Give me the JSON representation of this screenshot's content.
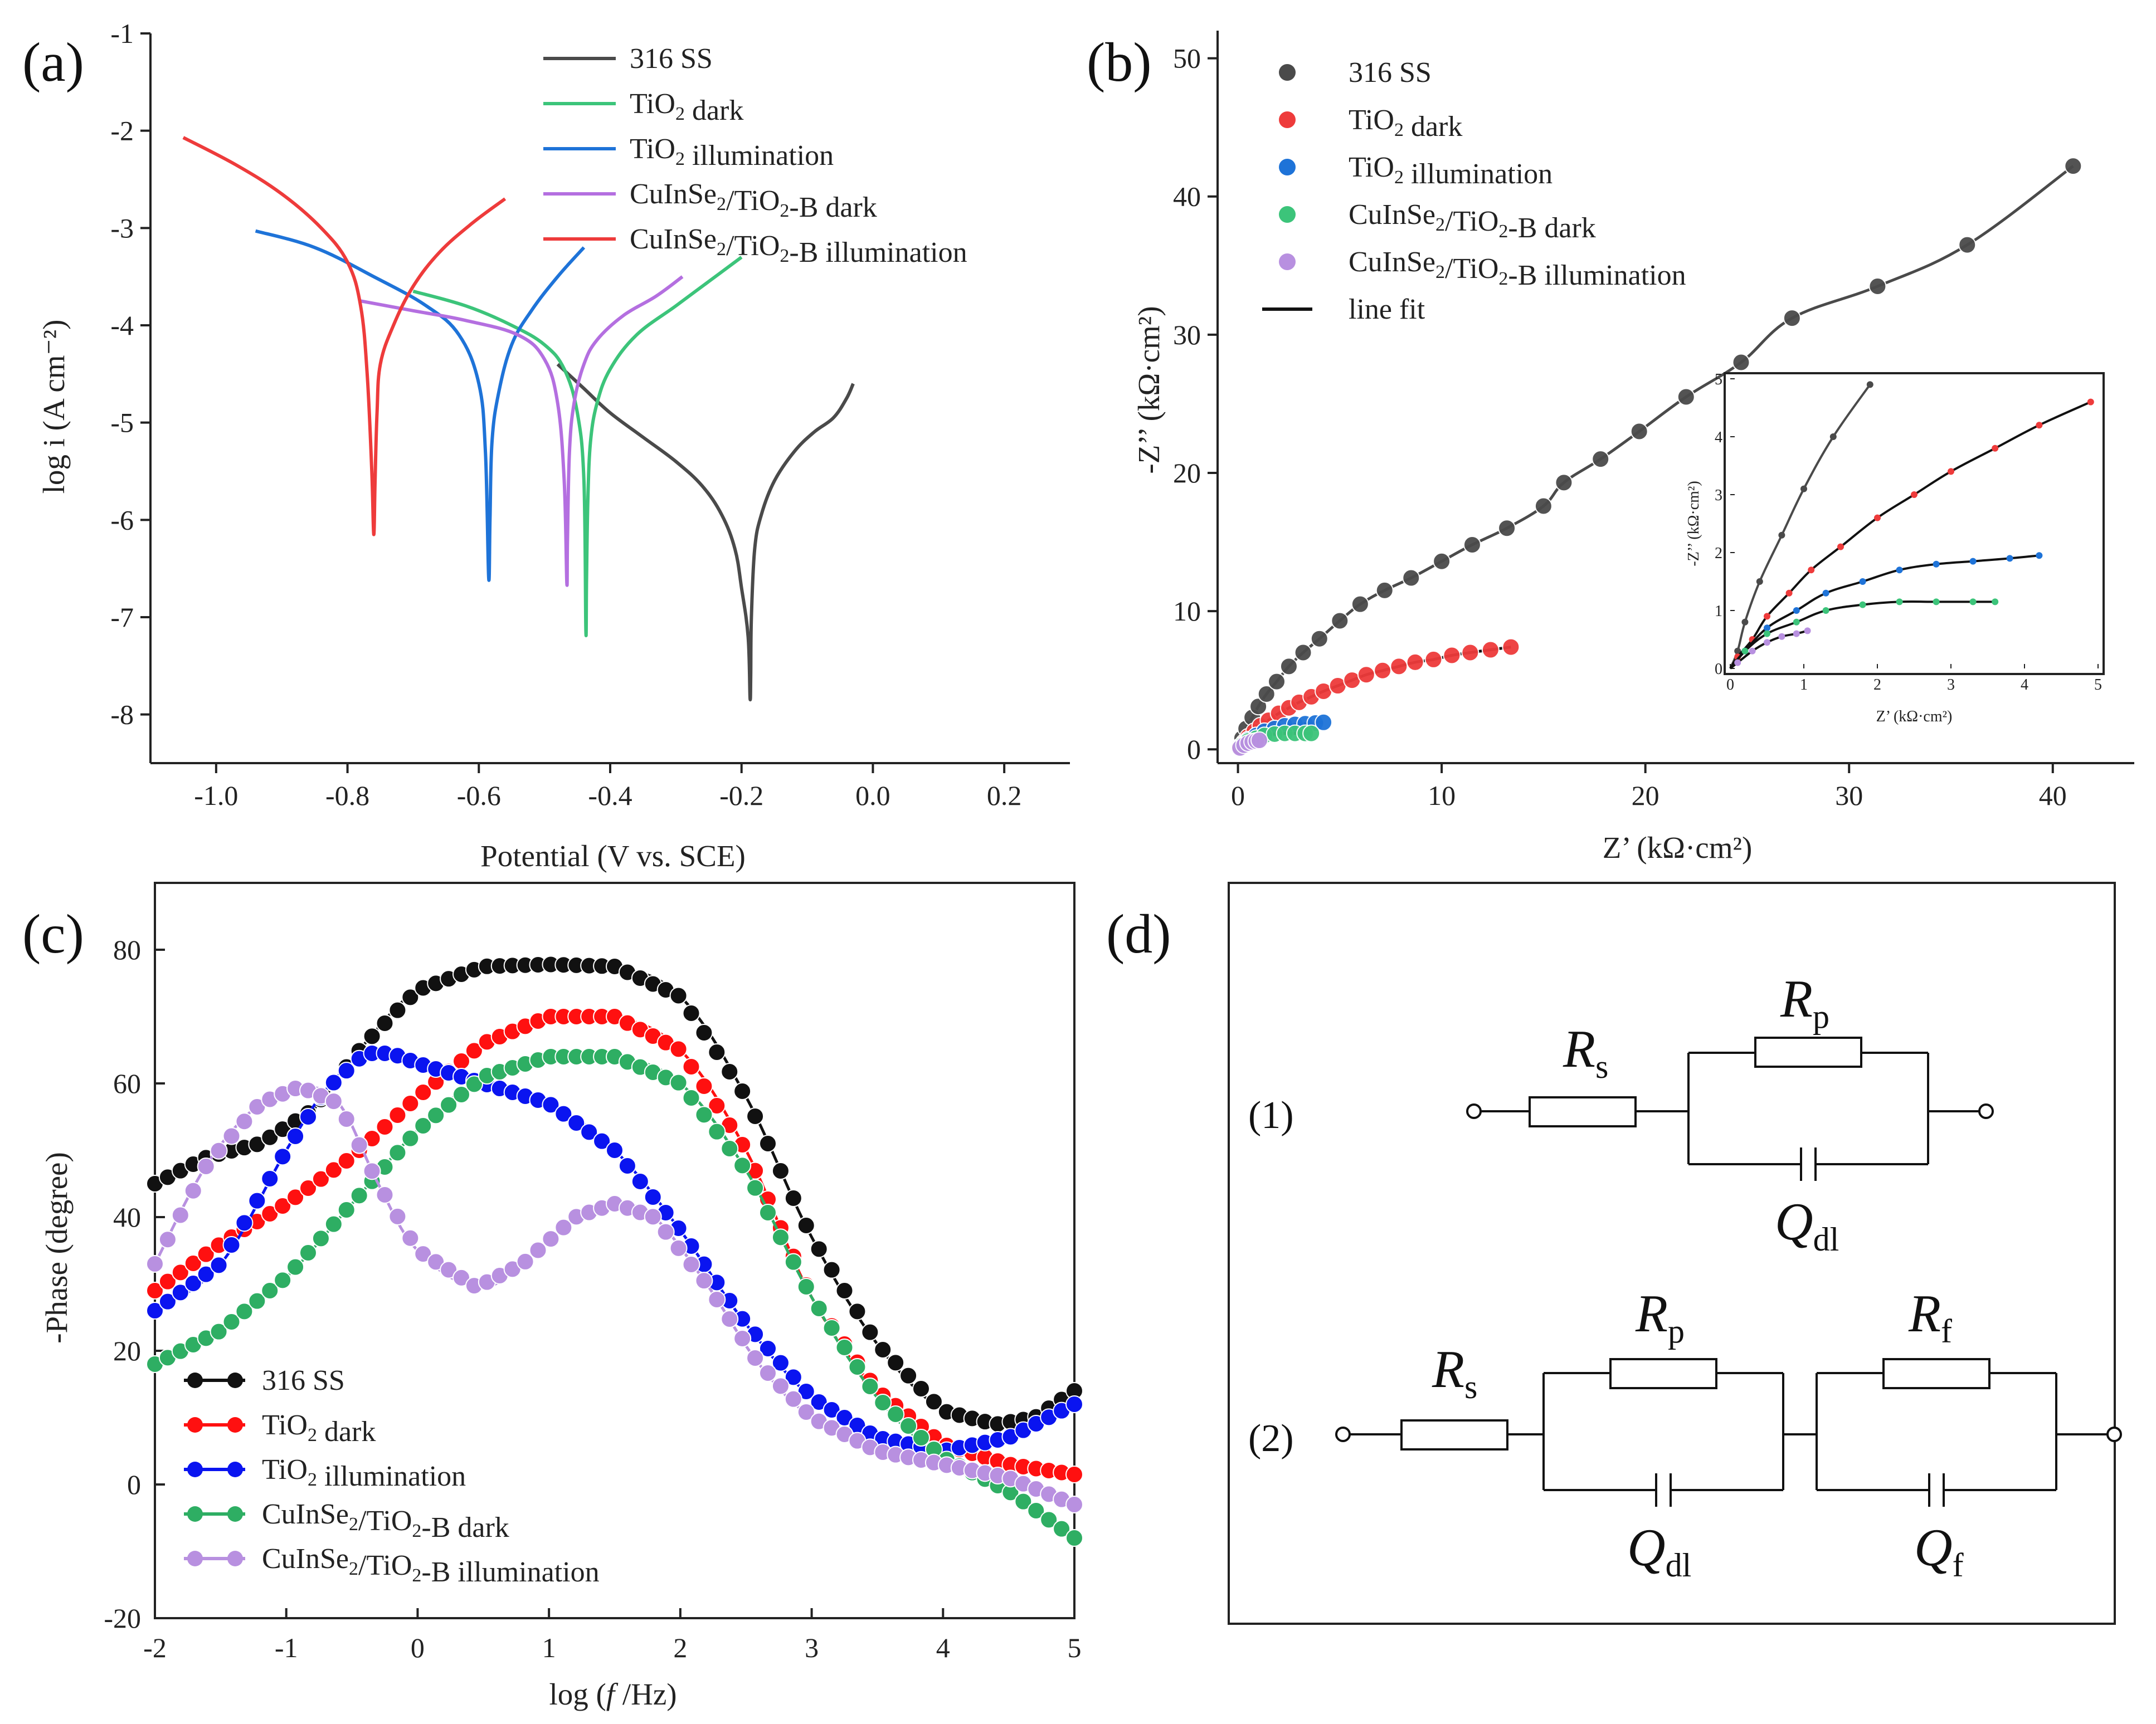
{
  "colors": {
    "ss316": "#4a4a4a",
    "tio2_dark": "#3cc47a",
    "tio2_illum": "#1e73d8",
    "cis_dark": "#b46fe0",
    "cis_illum": "#ee3b3b",
    "red": "#ff1010",
    "blue": "#0a14f0",
    "green": "#2eae63",
    "purple": "#b890e0",
    "black": "#111111"
  },
  "chart_data": [
    {
      "id": "a",
      "panel_label": "(a)",
      "type": "line",
      "title": "",
      "xlabel": "Potential (V vs. SCE)",
      "ylabel": "log i (A cm⁻²)",
      "xlim": [
        -1.1,
        0.3
      ],
      "ylim": [
        -8.5,
        -1
      ],
      "x_ticks": [
        "-1.0",
        "-0.8",
        "-0.6",
        "-0.4",
        "-0.2",
        "0.0",
        "0.2"
      ],
      "y_ticks": [
        "-1",
        "-2",
        "-3",
        "-4",
        "-5",
        "-6",
        "-7",
        "-8"
      ],
      "legend": [
        "316 SS",
        "TiO₂ dark",
        "TiO₂ illumination",
        "CuInSe₂/TiO₂-B dark",
        "CuInSe₂/TiO₂-B illumination"
      ],
      "legend_position": "top-right",
      "series": [
        {
          "name": "316 SS",
          "color_key": "ss316",
          "x": [
            -0.48,
            -0.44,
            -0.4,
            -0.35,
            -0.3,
            -0.26,
            -0.23,
            -0.21,
            -0.2,
            -0.19,
            -0.187,
            -0.186,
            -0.185,
            -0.18,
            -0.17,
            -0.15,
            -0.12,
            -0.09,
            -0.06,
            -0.04,
            -0.03
          ],
          "y": [
            -4.4,
            -4.65,
            -4.9,
            -5.15,
            -5.4,
            -5.65,
            -5.95,
            -6.3,
            -6.7,
            -7.2,
            -7.83,
            -7.6,
            -7.0,
            -6.3,
            -5.95,
            -5.6,
            -5.3,
            -5.1,
            -4.95,
            -4.75,
            -4.6
          ]
        },
        {
          "name": "TiO₂ dark",
          "color_key": "tio2_dark",
          "x": [
            -0.7,
            -0.62,
            -0.55,
            -0.5,
            -0.47,
            -0.45,
            -0.44,
            -0.437,
            -0.436,
            -0.434,
            -0.43,
            -0.42,
            -0.4,
            -0.36,
            -0.3,
            -0.25,
            -0.2
          ],
          "y": [
            -3.65,
            -3.8,
            -4.0,
            -4.2,
            -4.45,
            -4.9,
            -5.6,
            -7.15,
            -6.6,
            -5.8,
            -5.2,
            -4.8,
            -4.45,
            -4.1,
            -3.8,
            -3.55,
            -3.3
          ]
        },
        {
          "name": "TiO₂ illumination",
          "color_key": "tio2_illum",
          "x": [
            -0.94,
            -0.85,
            -0.76,
            -0.68,
            -0.63,
            -0.6,
            -0.59,
            -0.585,
            -0.583,
            -0.58,
            -0.57,
            -0.55,
            -0.52,
            -0.48,
            -0.44
          ],
          "y": [
            -3.03,
            -3.2,
            -3.5,
            -3.8,
            -4.1,
            -4.6,
            -5.3,
            -6.6,
            -6.0,
            -5.2,
            -4.7,
            -4.2,
            -3.85,
            -3.5,
            -3.2
          ]
        },
        {
          "name": "CuInSe₂/TiO₂-B dark",
          "color_key": "cis_dark",
          "x": [
            -0.78,
            -0.7,
            -0.62,
            -0.54,
            -0.5,
            -0.48,
            -0.47,
            -0.466,
            -0.465,
            -0.462,
            -0.455,
            -0.44,
            -0.42,
            -0.38,
            -0.33,
            -0.29
          ],
          "y": [
            -3.75,
            -3.85,
            -3.95,
            -4.1,
            -4.35,
            -4.8,
            -5.6,
            -6.65,
            -6.2,
            -5.3,
            -4.8,
            -4.4,
            -4.15,
            -3.9,
            -3.7,
            -3.5
          ]
        },
        {
          "name": "CuInSe₂/TiO₂-B illumination",
          "color_key": "cis_illum",
          "x": [
            -1.05,
            -0.97,
            -0.9,
            -0.84,
            -0.8,
            -0.78,
            -0.77,
            -0.763,
            -0.76,
            -0.758,
            -0.755,
            -0.75,
            -0.73,
            -0.7,
            -0.66,
            -0.61,
            -0.56
          ],
          "y": [
            -2.07,
            -2.35,
            -2.65,
            -3.0,
            -3.35,
            -3.8,
            -4.5,
            -5.5,
            -6.15,
            -5.6,
            -4.9,
            -4.4,
            -4.0,
            -3.6,
            -3.25,
            -2.95,
            -2.7
          ]
        }
      ]
    },
    {
      "id": "b",
      "panel_label": "(b)",
      "type": "scatter",
      "title": "",
      "xlabel": "Z’ (kΩ·cm²)",
      "ylabel": "-Z’’ (kΩ·cm²)",
      "xlim": [
        -1,
        44
      ],
      "ylim": [
        -1,
        52
      ],
      "x_ticks": [
        "0",
        "10",
        "20",
        "30",
        "40"
      ],
      "y_ticks": [
        "0",
        "10",
        "20",
        "30",
        "40",
        "50"
      ],
      "legend": [
        "316 SS",
        "TiO₂ dark",
        "TiO₂ illumination",
        "CuInSe₂/TiO₂-B dark",
        "CuInSe₂/TiO₂-B illumination",
        "line fit"
      ],
      "legend_position": "top-left",
      "series": [
        {
          "name": "316 SS",
          "color_key": "ss316",
          "points": [
            [
              0.1,
              0.3
            ],
            [
              0.2,
              0.8
            ],
            [
              0.4,
              1.5
            ],
            [
              0.7,
              2.3
            ],
            [
              1.0,
              3.1
            ],
            [
              1.4,
              4.0
            ],
            [
              1.9,
              4.9
            ],
            [
              2.5,
              6.0
            ],
            [
              3.2,
              7.0
            ],
            [
              4.0,
              8.0
            ],
            [
              5.0,
              9.3
            ],
            [
              6.0,
              10.5
            ],
            [
              7.2,
              11.5
            ],
            [
              8.5,
              12.4
            ],
            [
              10.0,
              13.6
            ],
            [
              11.5,
              14.8
            ],
            [
              13.2,
              16.0
            ],
            [
              15.0,
              17.6
            ],
            [
              16.0,
              19.3
            ],
            [
              17.8,
              21.0
            ],
            [
              19.7,
              23.0
            ],
            [
              22.0,
              25.5
            ],
            [
              24.7,
              28.0
            ],
            [
              27.2,
              31.2
            ],
            [
              31.4,
              33.5
            ],
            [
              35.8,
              36.5
            ],
            [
              41.0,
              42.2
            ]
          ]
        },
        {
          "name": "TiO₂ dark",
          "color_key": "cis_illum",
          "points": [
            [
              0.1,
              0.2
            ],
            [
              0.3,
              0.5
            ],
            [
              0.5,
              0.9
            ],
            [
              0.8,
              1.3
            ],
            [
              1.1,
              1.7
            ],
            [
              1.5,
              2.1
            ],
            [
              2.0,
              2.6
            ],
            [
              2.5,
              3.0
            ],
            [
              3.0,
              3.4
            ],
            [
              3.6,
              3.8
            ],
            [
              4.2,
              4.2
            ],
            [
              4.9,
              4.6
            ],
            [
              5.6,
              5.0
            ],
            [
              6.3,
              5.4
            ],
            [
              7.1,
              5.7
            ],
            [
              7.9,
              6.0
            ],
            [
              8.7,
              6.3
            ],
            [
              9.6,
              6.5
            ],
            [
              10.5,
              6.8
            ],
            [
              11.4,
              7.0
            ],
            [
              12.4,
              7.2
            ],
            [
              13.4,
              7.4
            ]
          ]
        },
        {
          "name": "TiO₂ illumination",
          "color_key": "tio2_illum",
          "points": [
            [
              0.2,
              0.3
            ],
            [
              0.5,
              0.7
            ],
            [
              0.9,
              1.0
            ],
            [
              1.3,
              1.3
            ],
            [
              1.8,
              1.5
            ],
            [
              2.3,
              1.7
            ],
            [
              2.8,
              1.8
            ],
            [
              3.3,
              1.85
            ],
            [
              3.8,
              1.9
            ],
            [
              4.2,
              1.95
            ]
          ]
        },
        {
          "name": "CuInSe₂/TiO₂-B dark",
          "color_key": "tio2_dark",
          "points": [
            [
              0.2,
              0.3
            ],
            [
              0.5,
              0.6
            ],
            [
              0.9,
              0.8
            ],
            [
              1.3,
              1.0
            ],
            [
              1.8,
              1.1
            ],
            [
              2.3,
              1.15
            ],
            [
              2.8,
              1.15
            ],
            [
              3.3,
              1.15
            ],
            [
              3.6,
              1.15
            ]
          ]
        },
        {
          "name": "CuInSe₂/TiO₂-B illumination",
          "color_key": "purple",
          "points": [
            [
              0.1,
              0.1
            ],
            [
              0.3,
              0.3
            ],
            [
              0.5,
              0.45
            ],
            [
              0.7,
              0.55
            ],
            [
              0.9,
              0.6
            ],
            [
              1.05,
              0.65
            ]
          ]
        }
      ],
      "inset": {
        "xlabel": "Z’ (kΩ·cm²)",
        "ylabel": "-Z’’ (kΩ·cm²)",
        "xlim": [
          0,
          5
        ],
        "ylim": [
          0,
          5
        ],
        "x_ticks": [
          "0",
          "1",
          "2",
          "3",
          "4",
          "5"
        ],
        "y_ticks": [
          "0",
          "1",
          "2",
          "3",
          "4",
          "5"
        ]
      }
    },
    {
      "id": "c",
      "panel_label": "(c)",
      "type": "line",
      "title": "",
      "xlabel": "log (f /Hz)",
      "ylabel": "-Phase (degree)",
      "xlim": [
        -2,
        5
      ],
      "ylim": [
        -20,
        90
      ],
      "x_ticks": [
        "-2",
        "-1",
        "0",
        "1",
        "2",
        "3",
        "4",
        "5"
      ],
      "y_ticks": [
        "-20",
        "0",
        "20",
        "40",
        "60",
        "80"
      ],
      "legend": [
        "316 SS",
        "TiO₂ dark",
        "TiO₂ illumination",
        "CuInSe₂/TiO₂-B dark",
        "CuInSe₂/TiO₂-B illumination"
      ],
      "legend_position": "bottom-left",
      "series": [
        {
          "name": "316 SS",
          "color_key": "black",
          "x": [
            -2,
            -1.6,
            -1.2,
            -0.8,
            -0.4,
            0,
            0.5,
            1.0,
            1.5,
            2.0,
            2.5,
            3.0,
            3.5,
            4.0,
            4.4,
            4.7,
            5.0
          ],
          "y": [
            45,
            49,
            51,
            56,
            66,
            74,
            77.5,
            77.8,
            77.5,
            73,
            58,
            37,
            21,
            11,
            9,
            10,
            14
          ]
        },
        {
          "name": "TiO₂ dark",
          "color_key": "red",
          "x": [
            -2,
            -1.5,
            -1,
            -0.5,
            0,
            0.5,
            1.0,
            1.5,
            2.0,
            2.5,
            3.0,
            3.5,
            4.0,
            4.5,
            5.0
          ],
          "y": [
            29,
            36,
            42,
            49,
            58,
            66,
            70,
            70,
            65,
            50,
            28,
            14,
            6,
            3,
            1.5
          ]
        },
        {
          "name": "TiO₂ illumination",
          "color_key": "blue",
          "x": [
            -2,
            -1.5,
            -1.0,
            -0.7,
            -0.4,
            -0.2,
            0,
            0.5,
            1.0,
            1.5,
            2.0,
            2.5,
            3.0,
            3.5,
            4.0,
            4.5,
            5.0
          ],
          "y": [
            26,
            33,
            50,
            59,
            64.5,
            64.5,
            63,
            60,
            57,
            50,
            38,
            24,
            13,
            7,
            5,
            7,
            12
          ]
        },
        {
          "name": "CuInSe₂/TiO₂-B dark",
          "color_key": "green",
          "x": [
            -2,
            -1.5,
            -1,
            -0.5,
            0,
            0.5,
            1.0,
            1.5,
            2.0,
            2.5,
            3.0,
            3.5,
            4.0,
            4.5,
            5.0
          ],
          "y": [
            18,
            23,
            31,
            42,
            53,
            61,
            64,
            64,
            60,
            47,
            28,
            13,
            4,
            -1,
            -8
          ]
        },
        {
          "name": "CuInSe₂/TiO₂-B illumination",
          "color_key": "purple",
          "x": [
            -2,
            -1.6,
            -1.2,
            -0.9,
            -0.6,
            -0.3,
            0,
            0.45,
            0.8,
            1.2,
            1.5,
            1.8,
            2.2,
            2.6,
            3.0,
            3.5,
            4.0,
            4.5,
            5.0
          ],
          "y": [
            33,
            48,
            57,
            59.5,
            57,
            45,
            35,
            29.5,
            33,
            40,
            42,
            40,
            30,
            18,
            10,
            5,
            3,
            1,
            -3
          ]
        }
      ]
    }
  ],
  "panel_d": {
    "label": "(d)",
    "circuit1": {
      "number": "(1)",
      "rs_main": "R",
      "rs_sub": "s",
      "rp_main": "R",
      "rp_sub": "p",
      "q_main": "Q",
      "q_sub": "dl"
    },
    "circuit2": {
      "number": "(2)",
      "rs_main": "R",
      "rs_sub": "s",
      "rp_main": "R",
      "rp_sub": "p",
      "qdl_main": "Q",
      "qdl_sub": "dl",
      "rf_main": "R",
      "rf_sub": "f",
      "qf_main": "Q",
      "qf_sub": "f"
    }
  }
}
